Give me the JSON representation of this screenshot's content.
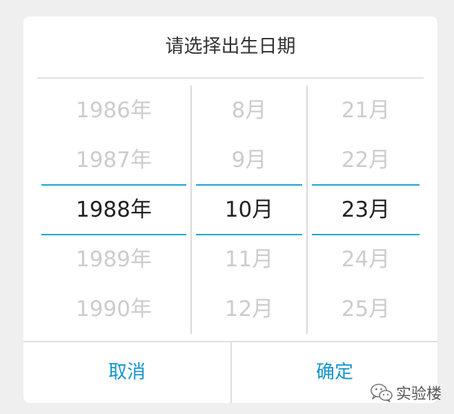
{
  "dialog": {
    "title": "请选择出生日期",
    "cancel_label": "取消",
    "confirm_label": "确定"
  },
  "picker": {
    "year": {
      "options": [
        "1986年",
        "1987年",
        "1988年",
        "1989年",
        "1990年"
      ],
      "selected": "1988年"
    },
    "month": {
      "options": [
        "8月",
        "9月",
        "10月",
        "11月",
        "12月"
      ],
      "selected": "10月"
    },
    "day": {
      "options": [
        "21月",
        "22月",
        "23月",
        "24月",
        "25月"
      ],
      "selected": "23月"
    }
  },
  "watermark": {
    "text": "实验楼",
    "icon": "wechat-icon"
  },
  "colors": {
    "accent": "#1496cc",
    "selection_line": "#1aa3d6",
    "selected_text": "#222222",
    "unselected_text": "#cccccc",
    "background": "#efefef"
  }
}
